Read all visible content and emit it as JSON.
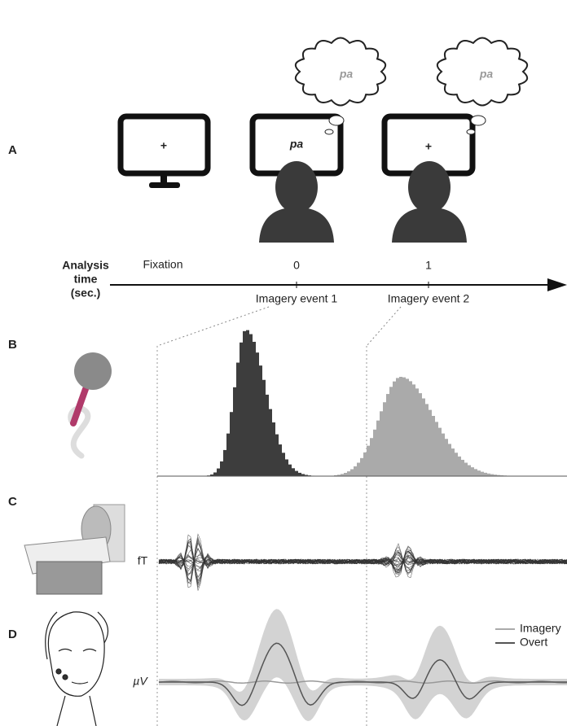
{
  "panel_labels": [
    "A",
    "B",
    "C",
    "D"
  ],
  "screens": [
    {
      "text": "+"
    },
    {
      "text": "pa"
    },
    {
      "text": "+"
    }
  ],
  "thought_bubbles": [
    "pa",
    "pa"
  ],
  "timeline": {
    "title": [
      "Analysis",
      "time",
      "(sec.)"
    ],
    "start_label": "Fixation",
    "ticks": [
      "0",
      "1"
    ],
    "events": [
      "Imagery event 1",
      "Imagery event 2"
    ]
  },
  "panel_c": {
    "unit": "fT"
  },
  "panel_d": {
    "unit": "µV",
    "legend": [
      "Imagery",
      "Overt"
    ]
  }
}
